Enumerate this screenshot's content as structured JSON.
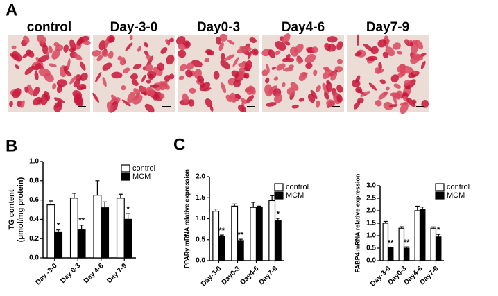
{
  "figure": {
    "panel_labels": [
      "A",
      "B",
      "C"
    ],
    "image_labels": [
      "control",
      "Day-3-0",
      "Day0-3",
      "Day4-6",
      "Day7-9"
    ]
  },
  "chart_data": [
    {
      "type": "bar",
      "y_label": [
        "TG content",
        "(μmol/mg protein)"
      ],
      "categories": [
        "Day -3-0",
        "Day 0-3",
        "Day 4-6",
        "Day 7-9"
      ],
      "series": [
        {
          "name": "control",
          "color": "#ffffff",
          "values": [
            0.55,
            0.62,
            0.65,
            0.62
          ],
          "errors": [
            0.04,
            0.05,
            0.15,
            0.04
          ]
        },
        {
          "name": "MCM",
          "color": "#000000",
          "values": [
            0.27,
            0.29,
            0.52,
            0.4
          ],
          "errors": [
            0.02,
            0.05,
            0.06,
            0.06
          ]
        }
      ],
      "annotations": [
        "*",
        "**",
        null,
        "*"
      ],
      "ylim": [
        0,
        1.0
      ],
      "yticks": [
        {
          "value": 0,
          "label": "0.0"
        },
        0.2,
        0.4,
        0.6,
        0.8,
        {
          "value": 1.0,
          "label": "1.0"
        }
      ],
      "legend": "upper right"
    },
    {
      "type": "bar",
      "y_label": [
        "PPARγ mRNA relative expression"
      ],
      "categories": [
        "Day-3-0",
        "Day0-3",
        "Day4-6",
        "Day7-9"
      ],
      "series": [
        {
          "name": "control",
          "color": "#ffffff",
          "values": [
            1.18,
            1.3,
            1.27,
            1.43
          ],
          "errors": [
            0.05,
            0.05,
            0.12,
            0.12
          ]
        },
        {
          "name": "MCM",
          "color": "#000000",
          "values": [
            0.57,
            0.48,
            1.28,
            0.95
          ],
          "errors": [
            0.04,
            0.03,
            0.02,
            0.06
          ]
        }
      ],
      "annotations": [
        "**",
        "**",
        null,
        "*"
      ],
      "ylim": [
        0,
        2.0
      ],
      "yticks": [
        {
          "value": 0,
          "label": "0.0"
        },
        0.5,
        {
          "value": 1.0,
          "label": "1.0"
        },
        1.5,
        {
          "value": 2.0,
          "label": "2.0"
        }
      ],
      "legend": "upper right"
    },
    {
      "type": "bar",
      "y_label": [
        "FABP4 mRNA relative expression"
      ],
      "categories": [
        "Day-3-0",
        "Day0-3",
        "Day4-6",
        "Day7-9"
      ],
      "series": [
        {
          "name": "control",
          "color": "#ffffff",
          "values": [
            1.5,
            1.3,
            2.0,
            1.3
          ],
          "errors": [
            0.07,
            0.06,
            0.18,
            0.05
          ]
        },
        {
          "name": "MCM",
          "color": "#000000",
          "values": [
            0.52,
            0.5,
            2.05,
            0.95
          ],
          "errors": [
            0.02,
            0.05,
            0.1,
            0.1
          ]
        }
      ],
      "annotations": [
        "**",
        "**",
        null,
        "*"
      ],
      "ylim": [
        0,
        3.0
      ],
      "yticks": [
        {
          "value": 0,
          "label": "0.0"
        },
        0.5,
        {
          "value": 1.0,
          "label": "1.0"
        },
        1.5,
        {
          "value": 2.0,
          "label": "2.0"
        },
        2.5,
        {
          "value": 3.0,
          "label": "3.0"
        }
      ],
      "legend": "upper right"
    }
  ]
}
